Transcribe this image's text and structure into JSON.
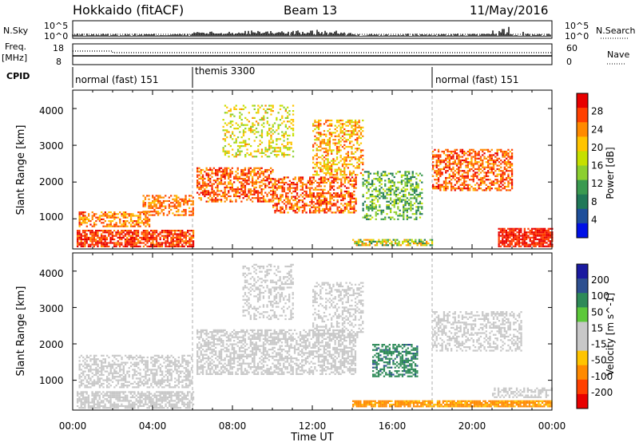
{
  "header": {
    "station": "Hokkaido (fitACF)",
    "beam": "Beam 13",
    "date": "11/May/2016"
  },
  "left_labels": {
    "nsky": "N.Sky",
    "freq": "Freq.",
    "mhz": "[MHz]",
    "cpid": "CPID"
  },
  "right_labels": {
    "nsearch": "N.Search",
    "nave": "Nave"
  },
  "top_axes": {
    "sky_ticks": [
      "10^5",
      "10^0"
    ],
    "freq_ticks": [
      "18",
      "8"
    ],
    "nave_ticks": [
      "60",
      "0"
    ]
  },
  "cpid_segments": [
    {
      "label": "normal (fast) 151",
      "start_hour": 0
    },
    {
      "label": "themis 3300",
      "start_hour": 6
    },
    {
      "label": "normal (fast) 151",
      "start_hour": 18
    }
  ],
  "x_axis": {
    "label": "Time UT",
    "ticks": [
      "00:00",
      "04:00",
      "08:00",
      "12:00",
      "16:00",
      "20:00",
      "00:00"
    ]
  },
  "chart_data": [
    {
      "type": "heatmap",
      "title": "",
      "xlabel": "Time UT",
      "ylabel": "Slant Range [km]",
      "xlim_hours": [
        0,
        24
      ],
      "ylim_km": [
        180,
        4500
      ],
      "yticks": [
        "1000",
        "2000",
        "3000",
        "4000"
      ],
      "colorbar": {
        "label": "Power [dB]",
        "ticks": [
          "28",
          "24",
          "20",
          "16",
          "12",
          "8",
          "4"
        ],
        "colors": [
          "#e80000",
          "#ff4000",
          "#ff8a00",
          "#ffc400",
          "#c6e000",
          "#8ccf30",
          "#3a9a50",
          "#207858",
          "#1e4f9a",
          "#0010e6"
        ]
      },
      "scatter_regions": [
        {
          "t0": 0.2,
          "t1": 6.0,
          "r0": 250,
          "r1": 700,
          "dens": 0.75,
          "vlo": 22,
          "vhi": 30
        },
        {
          "t0": 0.3,
          "t1": 3.8,
          "r0": 800,
          "r1": 1200,
          "dens": 0.6,
          "vlo": 18,
          "vhi": 28
        },
        {
          "t0": 3.5,
          "t1": 6.0,
          "r0": 1100,
          "r1": 1650,
          "dens": 0.55,
          "vlo": 20,
          "vhi": 27
        },
        {
          "t0": 6.2,
          "t1": 10.0,
          "r0": 1450,
          "r1": 2400,
          "dens": 0.55,
          "vlo": 20,
          "vhi": 29
        },
        {
          "t0": 10.0,
          "t1": 14.2,
          "r0": 1150,
          "r1": 2150,
          "dens": 0.55,
          "vlo": 20,
          "vhi": 29
        },
        {
          "t0": 12.0,
          "t1": 14.5,
          "r0": 2200,
          "r1": 3700,
          "dens": 0.45,
          "vlo": 16,
          "vhi": 26
        },
        {
          "t0": 7.5,
          "t1": 11.0,
          "r0": 2700,
          "r1": 4100,
          "dens": 0.3,
          "vlo": 12,
          "vhi": 22
        },
        {
          "t0": 14.5,
          "t1": 17.5,
          "r0": 1000,
          "r1": 2300,
          "dens": 0.45,
          "vlo": 6,
          "vhi": 18
        },
        {
          "t0": 18.0,
          "t1": 22.0,
          "r0": 1800,
          "r1": 2900,
          "dens": 0.55,
          "vlo": 20,
          "vhi": 29
        },
        {
          "t0": 21.3,
          "t1": 24.0,
          "r0": 250,
          "r1": 750,
          "dens": 0.85,
          "vlo": 24,
          "vhi": 30
        },
        {
          "t0": 14.0,
          "t1": 18.0,
          "r0": 300,
          "r1": 450,
          "dens": 0.7,
          "vlo": 8,
          "vhi": 24
        }
      ]
    },
    {
      "type": "heatmap",
      "title": "",
      "xlabel": "Time UT",
      "ylabel": "Slant Range [km]",
      "xlim_hours": [
        0,
        24
      ],
      "ylim_km": [
        180,
        4500
      ],
      "yticks": [
        "1000",
        "2000",
        "3000",
        "4000"
      ],
      "colorbar": {
        "label": "Velocity [m s^-1]",
        "ticks": [
          "200",
          "100",
          "50",
          "15",
          "-15",
          "-50",
          "-100",
          "-200"
        ],
        "colors": [
          "#1a1aa0",
          "#2e5090",
          "#2e8a58",
          "#5cc83a",
          "#c8c8c8",
          "#c8c8c8",
          "#ffc400",
          "#ff8a00",
          "#ff4000",
          "#e80000"
        ]
      },
      "scatter_regions": [
        {
          "t0": 0.2,
          "t1": 6.0,
          "r0": 250,
          "r1": 700,
          "dens": 0.7,
          "vlo": -15,
          "vhi": 15
        },
        {
          "t0": 0.3,
          "t1": 6.0,
          "r0": 800,
          "r1": 1700,
          "dens": 0.5,
          "vlo": -15,
          "vhi": 15
        },
        {
          "t0": 6.2,
          "t1": 14.2,
          "r0": 1150,
          "r1": 2400,
          "dens": 0.55,
          "vlo": -15,
          "vhi": 15
        },
        {
          "t0": 8.5,
          "t1": 11.0,
          "r0": 2700,
          "r1": 4200,
          "dens": 0.35,
          "vlo": -15,
          "vhi": 15
        },
        {
          "t0": 12.0,
          "t1": 14.5,
          "r0": 2200,
          "r1": 3700,
          "dens": 0.35,
          "vlo": -15,
          "vhi": 15
        },
        {
          "t0": 15.0,
          "t1": 17.3,
          "r0": 1100,
          "r1": 2000,
          "dens": 0.55,
          "vlo": 50,
          "vhi": 80
        },
        {
          "t0": 18.0,
          "t1": 22.5,
          "r0": 1800,
          "r1": 2900,
          "dens": 0.45,
          "vlo": -15,
          "vhi": 15
        },
        {
          "t0": 14.0,
          "t1": 24.0,
          "r0": 300,
          "r1": 450,
          "dens": 0.85,
          "vlo": -90,
          "vhi": -40
        },
        {
          "t0": 21.0,
          "t1": 24.0,
          "r0": 550,
          "r1": 800,
          "dens": 0.5,
          "vlo": -15,
          "vhi": 15
        }
      ]
    }
  ]
}
